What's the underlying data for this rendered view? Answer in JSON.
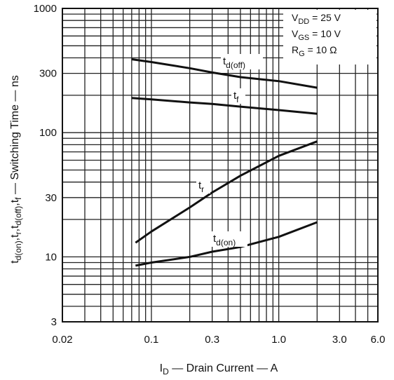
{
  "chart_data": {
    "type": "line",
    "xscale": "log",
    "yscale": "log",
    "xlim": [
      0.02,
      6.0
    ],
    "ylim": [
      3,
      1000
    ],
    "xlabel": "I_D — Drain Current — A",
    "xlabel_parts": {
      "sym": "I",
      "sub": "D",
      "rest": " — Drain Current — A"
    },
    "ylabel_parts": [
      {
        "t": "t"
      },
      {
        "t": "d(on)",
        "sub": true
      },
      {
        "t": ",t"
      },
      {
        "t": "r",
        "sub": true
      },
      {
        "t": ",t"
      },
      {
        "t": "d(off)",
        "sub": true
      },
      {
        "t": ",t"
      },
      {
        "t": "f",
        "sub": true
      },
      {
        "t": " — Switching Time — ns"
      }
    ],
    "xticks": [
      {
        "value": 0.02,
        "label": "0.02"
      },
      {
        "value": 0.1,
        "label": "0.1"
      },
      {
        "value": 0.3,
        "label": "0.3"
      },
      {
        "value": 1.0,
        "label": "1.0"
      },
      {
        "value": 3.0,
        "label": "3.0"
      },
      {
        "value": 6.0,
        "label": "6.0"
      }
    ],
    "yticks": [
      {
        "value": 3,
        "label": "3"
      },
      {
        "value": 10,
        "label": "10"
      },
      {
        "value": 30,
        "label": "30"
      },
      {
        "value": 100,
        "label": "100"
      },
      {
        "value": 300,
        "label": "300"
      },
      {
        "value": 1000,
        "label": "1000"
      }
    ],
    "grid": true,
    "conditions": [
      {
        "sym": "V",
        "sub": "DD",
        "rest": " = 25 V"
      },
      {
        "sym": "V",
        "sub": "GS",
        "rest": " = 10 V"
      },
      {
        "sym": "R",
        "sub": "G",
        "rest": " = 10 Ω"
      }
    ],
    "series": [
      {
        "name": "t_d(off)",
        "label": {
          "sym": "t",
          "sub": "d(off)"
        },
        "x": [
          0.07,
          0.1,
          0.2,
          0.3,
          0.5,
          1.0,
          2.0
        ],
        "y": [
          390,
          370,
          330,
          305,
          280,
          260,
          230
        ]
      },
      {
        "name": "t_f",
        "label": {
          "sym": "t",
          "sub": "f"
        },
        "x": [
          0.07,
          0.1,
          0.2,
          0.3,
          0.5,
          1.0,
          2.0
        ],
        "y": [
          190,
          185,
          175,
          170,
          162,
          152,
          142
        ]
      },
      {
        "name": "t_r",
        "label": {
          "sym": "t",
          "sub": "r"
        },
        "x": [
          0.075,
          0.1,
          0.2,
          0.3,
          0.5,
          1.0,
          2.0
        ],
        "y": [
          13,
          16,
          25,
          33,
          45,
          65,
          85
        ]
      },
      {
        "name": "t_d(on)",
        "label": {
          "sym": "t",
          "sub": "d(on)"
        },
        "x": [
          0.075,
          0.1,
          0.2,
          0.3,
          0.5,
          1.0,
          2.0
        ],
        "y": [
          8.5,
          9,
          10,
          11,
          12,
          14.5,
          19
        ]
      }
    ]
  }
}
